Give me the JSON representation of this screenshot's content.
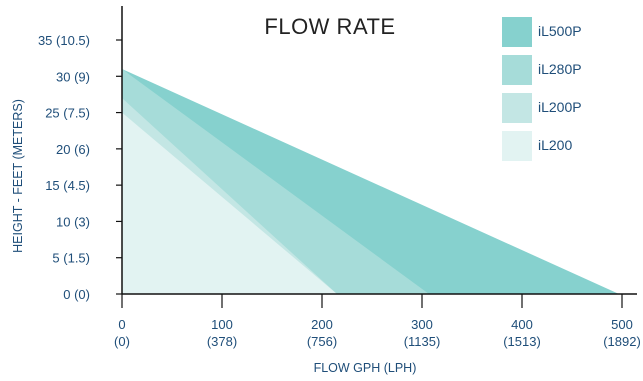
{
  "chart_data": {
    "type": "area",
    "title": "FLOW  RATE",
    "xlabel": "FLOW  GPH  (LPH)",
    "ylabel": "HEIGHT - FEET (METERS)",
    "xlim": [
      0,
      500
    ],
    "ylim": [
      0,
      35
    ],
    "x_ticks": [
      {
        "value": 0,
        "label": "0",
        "sublabel": "(0)"
      },
      {
        "value": 100,
        "label": "100",
        "sublabel": "(378)"
      },
      {
        "value": 200,
        "label": "200",
        "sublabel": "(756)"
      },
      {
        "value": 300,
        "label": "300",
        "sublabel": "(1135)"
      },
      {
        "value": 400,
        "label": "400",
        "sublabel": "(1513)"
      },
      {
        "value": 500,
        "label": "500",
        "sublabel": "(1892)"
      }
    ],
    "y_ticks": [
      {
        "value": 0,
        "label": "0 (0)"
      },
      {
        "value": 5,
        "label": "5 (1.5)"
      },
      {
        "value": 10,
        "label": "10 (3)"
      },
      {
        "value": 15,
        "label": "15 (4.5)"
      },
      {
        "value": 20,
        "label": "20 (6)"
      },
      {
        "value": 25,
        "label": "25 (7.5)"
      },
      {
        "value": 30,
        "label": "30 (9)"
      },
      {
        "value": 35,
        "label": "35 (10.5)"
      }
    ],
    "series": [
      {
        "name": "iL500P",
        "color": "#86d1ce",
        "points": [
          [
            0,
            31
          ],
          [
            497,
            0
          ]
        ]
      },
      {
        "name": "iL280P",
        "color": "#a6dcd9",
        "points": [
          [
            0,
            31
          ],
          [
            307,
            0
          ]
        ]
      },
      {
        "name": "iL200P",
        "color": "#c3e6e4",
        "points": [
          [
            0,
            27
          ],
          [
            215,
            0
          ]
        ]
      },
      {
        "name": "iL200",
        "color": "#e2f3f2",
        "points": [
          [
            0,
            25
          ],
          [
            215,
            0
          ]
        ]
      }
    ],
    "grid": false,
    "legend_position": "top-right"
  },
  "colors": {
    "axis": "#111111",
    "tick_text": "#1f4e79",
    "title_text": "#222222"
  }
}
